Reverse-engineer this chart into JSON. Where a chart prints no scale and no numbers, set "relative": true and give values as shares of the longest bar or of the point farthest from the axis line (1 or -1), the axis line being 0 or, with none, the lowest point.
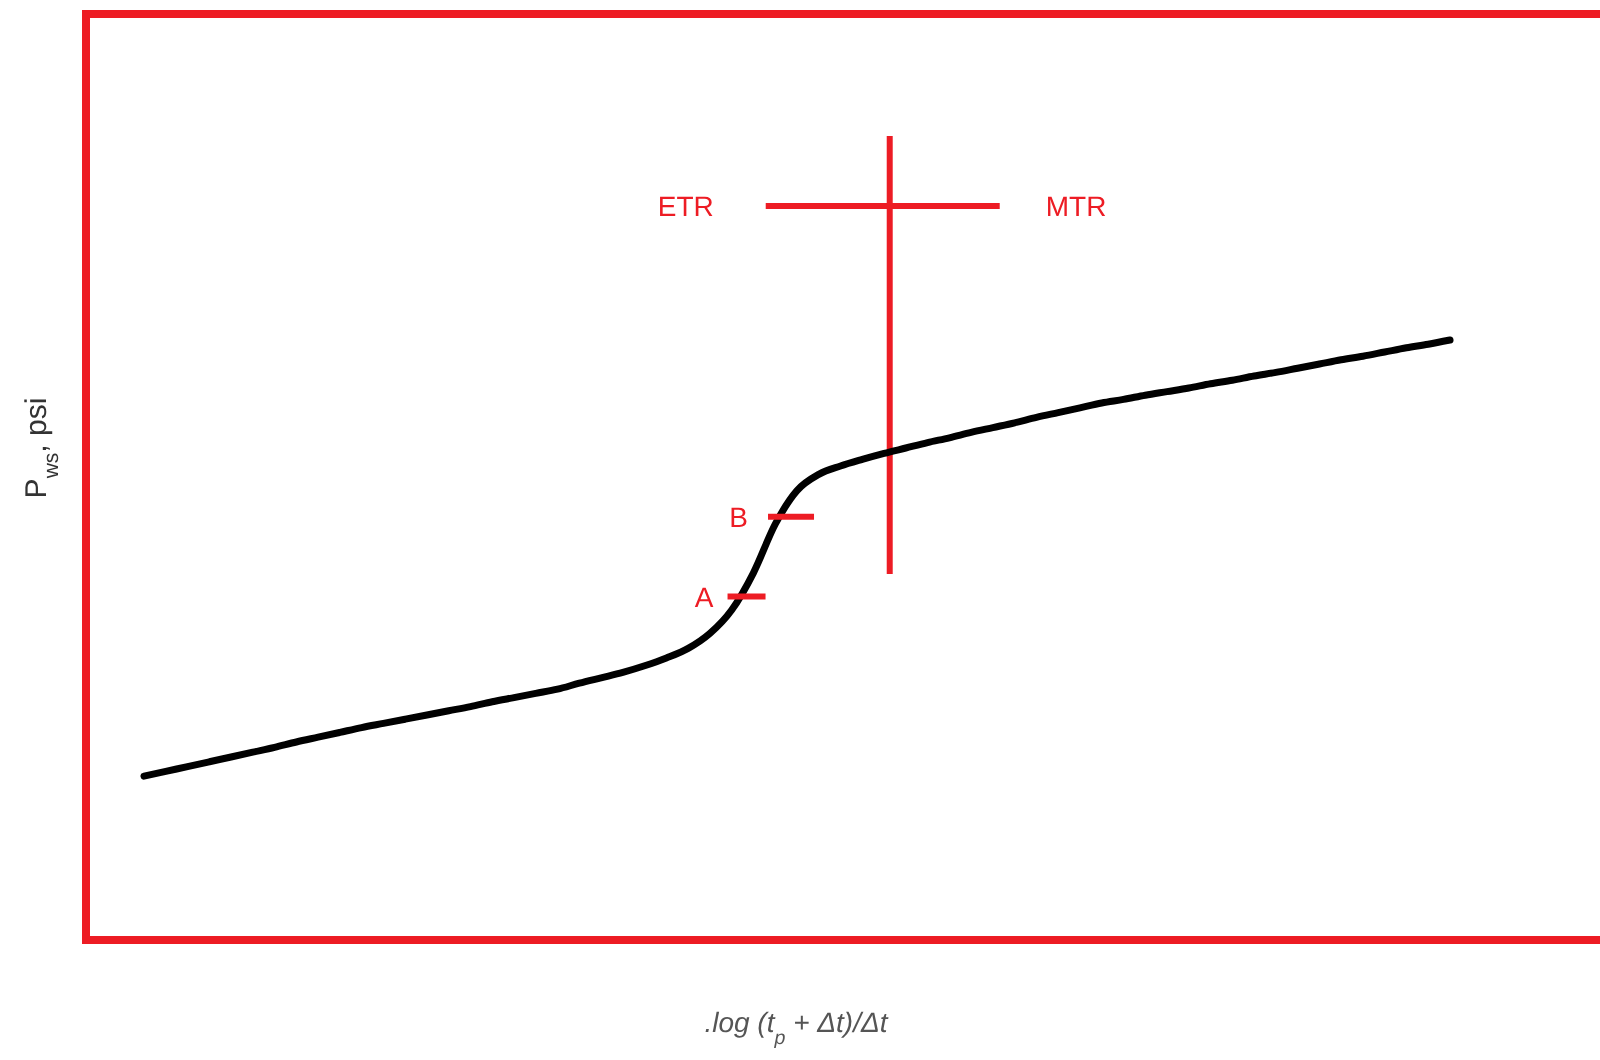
{
  "chart_data": {
    "type": "line",
    "relative": true,
    "xlabel": ".log (t$_{p}$ + Δt)/Δt",
    "ylabel": "P$_{ws}$, psi",
    "categories": [
      null,
      null,
      null,
      null,
      null,
      null,
      null,
      null,
      null,
      null,
      null,
      null,
      null,
      null,
      null,
      null,
      null,
      null,
      null,
      null,
      null,
      null,
      null,
      null,
      null,
      null,
      null,
      null,
      null,
      null,
      null,
      null,
      null,
      null,
      null,
      null,
      null,
      null,
      null,
      null,
      null,
      null,
      null,
      null,
      null,
      null,
      null,
      null,
      null,
      null,
      null,
      null,
      null,
      null,
      null,
      null,
      null,
      null,
      null,
      null,
      null
    ],
    "series": [
      {
        "color": "#000000",
        "values": [
          0.273,
          0.281,
          0.289,
          0.297,
          0.305,
          0.313,
          0.321,
          0.33,
          0.338,
          0.346,
          0.354,
          0.361,
          0.368,
          0.375,
          0.382,
          0.389,
          0.397,
          0.404,
          0.411,
          0.418,
          0.428,
          0.437,
          0.446,
          0.457,
          0.47,
          0.486,
          0.511,
          0.55,
          0.612,
          0.693,
          0.749,
          0.776,
          0.79,
          0.801,
          0.811,
          0.82,
          0.829,
          0.837,
          0.846,
          0.854,
          0.862,
          0.871,
          0.879,
          0.887,
          0.895,
          0.901,
          0.908,
          0.914,
          0.92,
          0.927,
          0.933,
          0.94,
          0.946,
          0.953,
          0.96,
          0.967,
          0.973,
          0.98,
          0.987,
          0.993,
          1
        ]
      }
    ],
    "annotations": [
      "ETR",
      "MTR",
      "A",
      "B"
    ]
  }
}
